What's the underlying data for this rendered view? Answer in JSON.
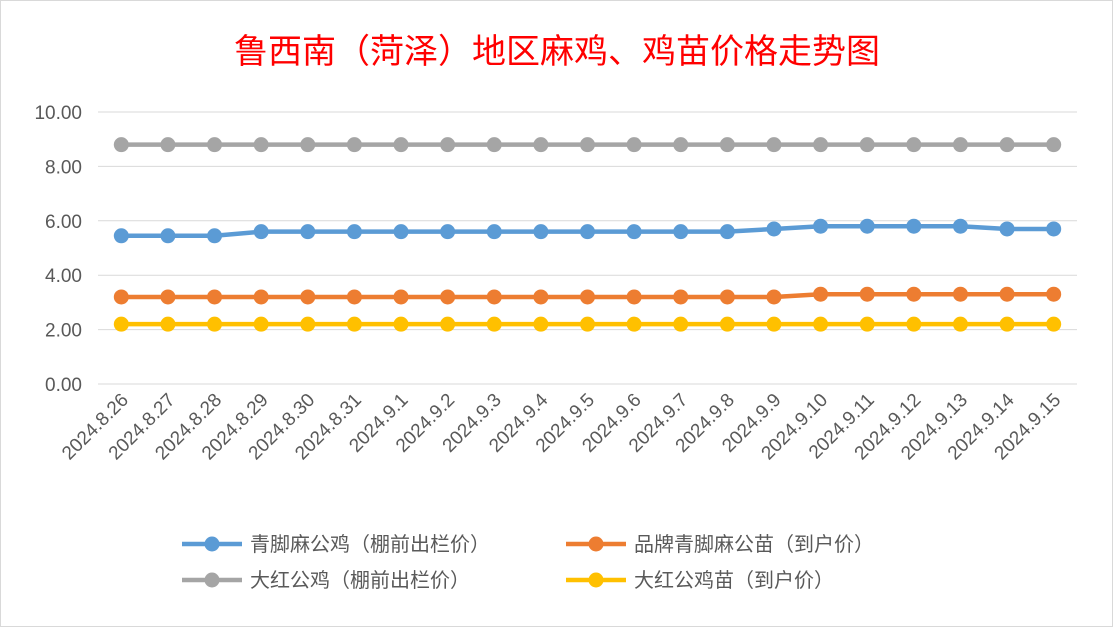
{
  "chart_data": {
    "type": "line",
    "title": "鲁西南（菏泽）地区麻鸡、鸡苗价格走势图",
    "categories": [
      "2024.8.26",
      "2024.8.27",
      "2024.8.28",
      "2024.8.29",
      "2024.8.30",
      "2024.8.31",
      "2024.9.1",
      "2024.9.2",
      "2024.9.3",
      "2024.9.4",
      "2024.9.5",
      "2024.9.6",
      "2024.9.7",
      "2024.9.8",
      "2024.9.9",
      "2024.9.10",
      "2024.9.11",
      "2024.9.12",
      "2024.9.13",
      "2024.9.14",
      "2024.9.15"
    ],
    "y_ticks": [
      "0.00",
      "2.00",
      "4.00",
      "6.00",
      "8.00",
      "10.00"
    ],
    "ylim": [
      0,
      10
    ],
    "grid": true,
    "legend_position": "bottom",
    "series": [
      {
        "name": "青脚麻公鸡（棚前出栏价）",
        "color": "#5b9bd5",
        "values": [
          5.45,
          5.45,
          5.45,
          5.6,
          5.6,
          5.6,
          5.6,
          5.6,
          5.6,
          5.6,
          5.6,
          5.6,
          5.6,
          5.6,
          5.7,
          5.8,
          5.8,
          5.8,
          5.8,
          5.7,
          5.7
        ]
      },
      {
        "name": "品牌青脚麻公苗（到户价）",
        "color": "#ed7d31",
        "values": [
          3.2,
          3.2,
          3.2,
          3.2,
          3.2,
          3.2,
          3.2,
          3.2,
          3.2,
          3.2,
          3.2,
          3.2,
          3.2,
          3.2,
          3.2,
          3.3,
          3.3,
          3.3,
          3.3,
          3.3,
          3.3
        ]
      },
      {
        "name": "大红公鸡（棚前出栏价）",
        "color": "#a5a5a5",
        "values": [
          8.8,
          8.8,
          8.8,
          8.8,
          8.8,
          8.8,
          8.8,
          8.8,
          8.8,
          8.8,
          8.8,
          8.8,
          8.8,
          8.8,
          8.8,
          8.8,
          8.8,
          8.8,
          8.8,
          8.8,
          8.8
        ]
      },
      {
        "name": "大红公鸡苗（到户价）",
        "color": "#ffc000",
        "values": [
          2.2,
          2.2,
          2.2,
          2.2,
          2.2,
          2.2,
          2.2,
          2.2,
          2.2,
          2.2,
          2.2,
          2.2,
          2.2,
          2.2,
          2.2,
          2.2,
          2.2,
          2.2,
          2.2,
          2.2,
          2.2
        ]
      }
    ]
  }
}
